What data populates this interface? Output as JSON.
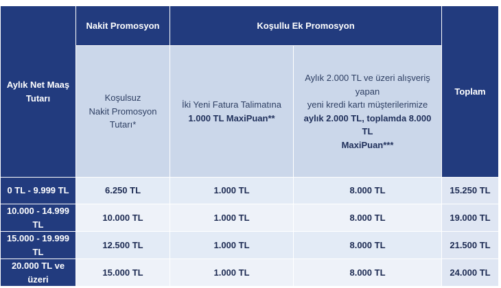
{
  "header": {
    "monthly_salary": "Aylık Net Maaş Tutarı",
    "cash_promo": "Nakit Promosyon",
    "conditional_promo": "Koşullu Ek Promosyon",
    "total": "Toplam",
    "sub_unconditional_line1": "Koşulsuz",
    "sub_unconditional_line2": "Nakit Promosyon",
    "sub_unconditional_line3": "Tutarı*",
    "sub_invoice_line1": "İki Yeni Fatura Talimatına",
    "sub_invoice_line2": "1.000 TL MaxiPuan**",
    "sub_card_line1": "Aylık 2.000 TL ve üzeri alışveriş yapan",
    "sub_card_line2": "yeni kredi kartı müşterilerimize",
    "sub_card_line3": "aylık 2.000 TL, toplamda 8.000 TL",
    "sub_card_line4": "MaxiPuan***"
  },
  "rows": [
    {
      "range": "0 TL - 9.999 TL",
      "cash": "6.250 TL",
      "invoice": "1.000 TL",
      "card": "8.000 TL",
      "total": "15.250 TL"
    },
    {
      "range": "10.000 - 14.999 TL",
      "cash": "10.000 TL",
      "invoice": "1.000 TL",
      "card": "8.000 TL",
      "total": "19.000 TL"
    },
    {
      "range": "15.000 - 19.999 TL",
      "cash": "12.500 TL",
      "invoice": "1.000 TL",
      "card": "8.000 TL",
      "total": "21.500 TL"
    },
    {
      "range": "20.000 TL ve üzeri",
      "cash": "15.000 TL",
      "invoice": "1.000 TL",
      "card": "8.000 TL",
      "total": "24.000 TL"
    }
  ]
}
